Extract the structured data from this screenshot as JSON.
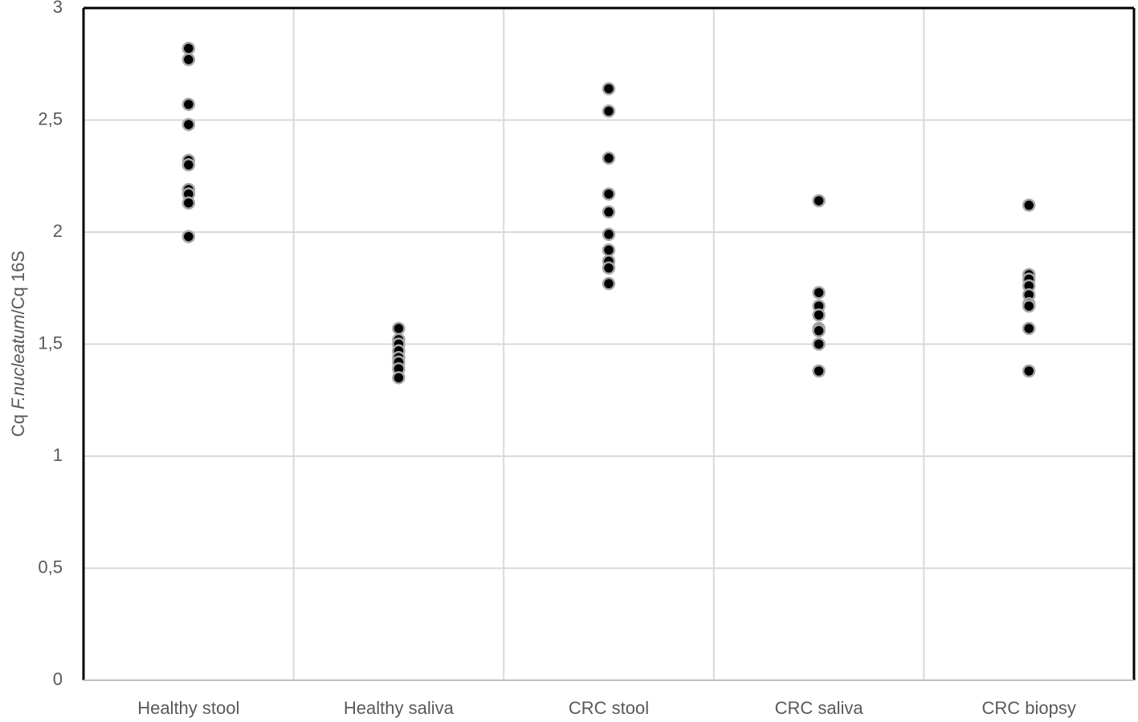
{
  "chart_data": {
    "type": "strip",
    "y_label": [
      "Cq ",
      "F.nucleatum",
      "/Cq 16S"
    ],
    "categories": [
      "Healthy stool",
      "Healthy saliva",
      "CRC stool",
      "CRC saliva",
      "CRC biopsy"
    ],
    "values": [
      [
        2.82,
        2.77,
        2.57,
        2.48,
        2.32,
        2.3,
        2.19,
        2.17,
        2.13,
        1.98
      ],
      [
        1.57,
        1.52,
        1.5,
        1.47,
        1.44,
        1.42,
        1.39,
        1.35
      ],
      [
        2.64,
        2.54,
        2.33,
        2.17,
        2.09,
        1.99,
        1.92,
        1.87,
        1.84,
        1.77
      ],
      [
        2.14,
        1.73,
        1.67,
        1.63,
        1.57,
        1.56,
        1.5,
        1.38
      ],
      [
        2.12,
        1.81,
        1.79,
        1.76,
        1.72,
        1.68,
        1.67,
        1.57,
        1.38
      ]
    ],
    "color": "#000000",
    "ylim": [
      0,
      3
    ],
    "yticks": [
      0,
      {
        "value": 0.5,
        "label": "0,5"
      },
      1,
      {
        "value": 1.5,
        "label": "1,5"
      },
      2,
      {
        "value": 2.5,
        "label": "2,5"
      },
      3
    ],
    "grid": true
  }
}
